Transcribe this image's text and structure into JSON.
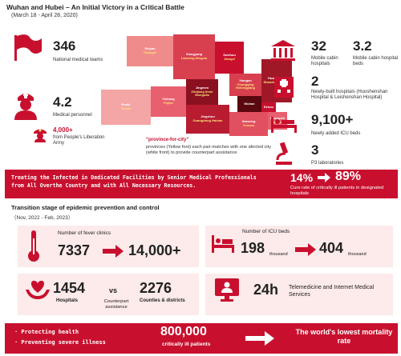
{
  "header": {
    "title": "Wuhan and Hubei – An Initial Victory in a Critical Battle",
    "subtitle": "(March 18 - April 28, 2020)"
  },
  "left_stats": {
    "teams_value": "346",
    "teams_label": "National medical teams",
    "personnel_value": "4.2",
    "personnel_label": "Medical personnel",
    "army_value": "4,000+",
    "army_label": "from People's Liberation Army"
  },
  "map": {
    "tiles": [
      {
        "city": "Shiyan",
        "province": "Guangxi"
      },
      {
        "city": "Xiangyang",
        "province": "Liaoning Ningxia"
      },
      {
        "city": "Suizhou",
        "province": "Jiangxi"
      },
      {
        "city": "Jingmen",
        "province": "Zhejiang Inner Mongolia"
      },
      {
        "city": "Xiaogan",
        "province": "Chongqing Heilongjiang"
      },
      {
        "city": "Huanggang",
        "province": "Shandong Hunan"
      },
      {
        "city": "Enshi",
        "province": "Tianjin"
      },
      {
        "city": "Yichang",
        "province": "Fujian"
      },
      {
        "city": "Wuhan",
        "province": ""
      },
      {
        "city": "Ezhou",
        "province": ""
      },
      {
        "city": "Jingzhou",
        "province": "Guangdong Hainan"
      },
      {
        "city": "Xianning",
        "province": "Yunnan"
      },
      {
        "city": "Huangshi",
        "province": "Jiangsu"
      }
    ],
    "note_title": "“province-for-city”",
    "note_text": "provinces (Yellow font) each pair-matches with one afected city (white front) to provide counterpart assistance"
  },
  "right_stats": {
    "mobile_value": "32",
    "mobile_label": "Mobile cabin hospitals",
    "beds_value": "3.2",
    "beds_label": "Mobile cabin hospital beds",
    "newbuilt_value": "2",
    "newbuilt_label": "Newly-built hospitals (Huoshenshan Hospital & Leishenshan Hospital)",
    "icu_value": "9,100+",
    "icu_label": "Newly added ICU beds",
    "p3_value": "3",
    "p3_label": "P3 laboratories"
  },
  "banner1": {
    "text": "Treating the Infected in Dedicated Facilities by Senior Medical Professionals from All Overthe Country and with All Necessary Resources.",
    "pct1": "14%",
    "pct2": "89%",
    "cure_label": "Cure rate of critically ill patients in designated hospitals"
  },
  "section2": {
    "title": "Transition stage of epidemic prevention and control",
    "subtitle": "（Nov, 2022 - Feb, 2023）"
  },
  "fever": {
    "label": "Number of fever clinics",
    "from": "7337",
    "to": "14,000+"
  },
  "icu": {
    "label": "Number of ICU beds",
    "from": "198",
    "to": "404",
    "unit": "thousand"
  },
  "assist": {
    "hosp_value": "1454",
    "hosp_label": "Hospitals",
    "vs": "vs",
    "vs_label": "Counterpart assistance",
    "counties_value": "2276",
    "counties_label": "Counties & districts"
  },
  "tele": {
    "value": "24h",
    "label": "Telemedicine and Internet Medical Services"
  },
  "banner2": {
    "bullet1": "· Protecting health",
    "bullet2": "· Preventing severe illness",
    "patients_value": "800,000",
    "patients_label": "critically ill patients",
    "result": "The world's lowest mortality rate"
  },
  "colors": {
    "accent": "#c8102e",
    "panel": "#fdeaea"
  }
}
